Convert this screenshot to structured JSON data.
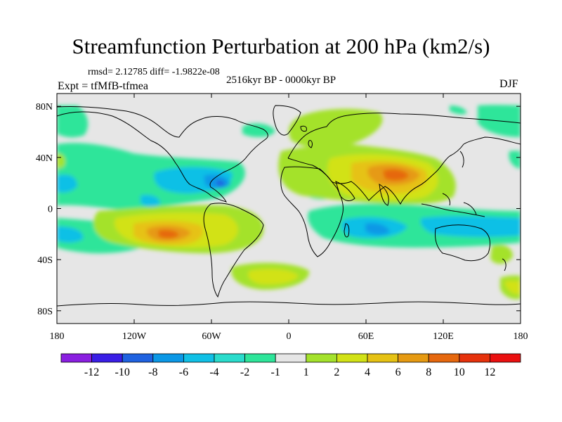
{
  "header": {
    "title": "Streamfunction Perturbation at 200 hPa (km2/s)",
    "stats": "rmsd= 2.12785 diff= -1.9822e-08",
    "period": "2516kyr BP - 0000kyr BP",
    "experiment": "Expt = tfMfB-tfmea",
    "season": "DJF"
  },
  "map": {
    "projection": "cylindrical-equidistant",
    "lon_range": [
      -180,
      180
    ],
    "lat_range": [
      -90,
      90
    ],
    "lat_labels": [
      "80N",
      "40N",
      "0",
      "40S",
      "80S"
    ],
    "lat_values": [
      80,
      40,
      0,
      -40,
      -80
    ],
    "lon_labels": [
      "180",
      "120W",
      "60W",
      "0",
      "60E",
      "120E",
      "180"
    ],
    "lon_values": [
      -180,
      -120,
      -60,
      0,
      60,
      120,
      180
    ],
    "background_color": "#e6e6e6",
    "coast_color": "#000000"
  },
  "colorbar": {
    "labels": [
      "-12",
      "-10",
      "-8",
      "-6",
      "-4",
      "-2",
      "-1",
      "1",
      "2",
      "4",
      "6",
      "8",
      "10",
      "12"
    ],
    "colors": [
      "#8a1fe0",
      "#3a1ee6",
      "#1f62e0",
      "#0b98e6",
      "#10c0e6",
      "#2adccc",
      "#2ee59a",
      "#e6e6e6",
      "#a4e22c",
      "#d2e216",
      "#e6c214",
      "#e69a12",
      "#e6680e",
      "#e6320c",
      "#ea1010"
    ]
  }
}
